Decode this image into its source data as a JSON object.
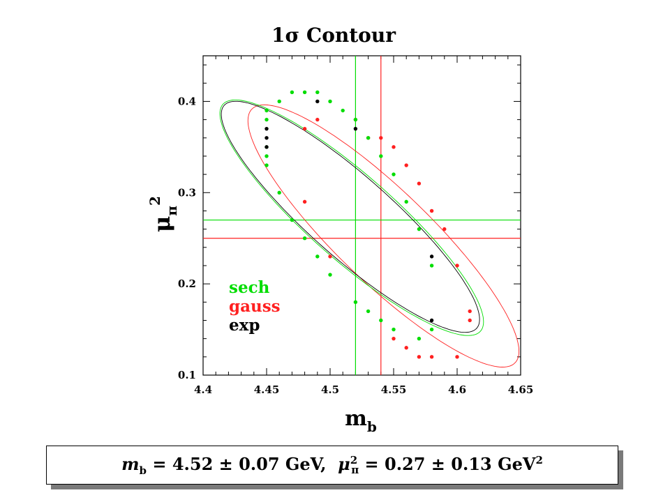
{
  "chart_data": {
    "type": "scatter",
    "title": "1σ Contour",
    "xlabel": "m",
    "xlabel_sub": "b",
    "ylabel": "μ",
    "ylabel_sub": "π",
    "ylabel_sup": "2",
    "xlim": [
      4.4,
      4.65
    ],
    "ylim": [
      0.1,
      0.45
    ],
    "xticks": [
      4.4,
      4.45,
      4.5,
      4.55,
      4.6,
      4.65
    ],
    "xtick_labels": [
      "4.4",
      "4.45",
      "4.5",
      "4.55",
      "4.6",
      "4.65"
    ],
    "yticks": [
      0.1,
      0.2,
      0.3,
      0.4
    ],
    "ytick_labels": [
      "0.1",
      "0.2",
      "0.3",
      "0.4"
    ],
    "legend_position": "bottom-left",
    "series": [
      {
        "name": "sech",
        "color": "#00dd00",
        "contour": {
          "cx": 4.517,
          "cy": 0.2725,
          "a": 0.161,
          "b": 0.039,
          "angle_deg": -52
        },
        "points": [
          [
            4.45,
            0.39
          ],
          [
            4.45,
            0.38
          ],
          [
            4.45,
            0.35
          ],
          [
            4.45,
            0.34
          ],
          [
            4.45,
            0.33
          ],
          [
            4.46,
            0.4
          ],
          [
            4.47,
            0.41
          ],
          [
            4.48,
            0.41
          ],
          [
            4.49,
            0.41
          ],
          [
            4.5,
            0.4
          ],
          [
            4.51,
            0.39
          ],
          [
            4.52,
            0.38
          ],
          [
            4.53,
            0.36
          ],
          [
            4.54,
            0.34
          ],
          [
            4.55,
            0.32
          ],
          [
            4.56,
            0.29
          ],
          [
            4.57,
            0.26
          ],
          [
            4.58,
            0.22
          ],
          [
            4.58,
            0.15
          ],
          [
            4.57,
            0.14
          ],
          [
            4.55,
            0.15
          ],
          [
            4.54,
            0.16
          ],
          [
            4.53,
            0.17
          ],
          [
            4.52,
            0.18
          ],
          [
            4.5,
            0.21
          ],
          [
            4.49,
            0.23
          ],
          [
            4.48,
            0.25
          ],
          [
            4.47,
            0.27
          ],
          [
            4.46,
            0.3
          ]
        ]
      },
      {
        "name": "gauss",
        "color": "#ff2020",
        "contour": {
          "cx": 4.542,
          "cy": 0.2525,
          "a": 0.174,
          "b": 0.042,
          "angle_deg": -54.5
        },
        "points": [
          [
            4.48,
            0.37
          ],
          [
            4.49,
            0.38
          ],
          [
            4.52,
            0.38
          ],
          [
            4.53,
            0.36
          ],
          [
            4.54,
            0.36
          ],
          [
            4.55,
            0.35
          ],
          [
            4.56,
            0.33
          ],
          [
            4.57,
            0.31
          ],
          [
            4.58,
            0.28
          ],
          [
            4.59,
            0.26
          ],
          [
            4.6,
            0.22
          ],
          [
            4.61,
            0.17
          ],
          [
            4.61,
            0.16
          ],
          [
            4.6,
            0.12
          ],
          [
            4.58,
            0.12
          ],
          [
            4.57,
            0.12
          ],
          [
            4.56,
            0.13
          ],
          [
            4.55,
            0.14
          ],
          [
            4.5,
            0.23
          ],
          [
            4.48,
            0.29
          ]
        ]
      },
      {
        "name": "exp",
        "color": "#000000",
        "contour": {
          "cx": 4.516,
          "cy": 0.2735,
          "a": 0.158,
          "b": 0.0375,
          "angle_deg": -52
        },
        "points": [
          [
            4.45,
            0.37
          ],
          [
            4.45,
            0.36
          ],
          [
            4.45,
            0.35
          ],
          [
            4.49,
            0.4
          ],
          [
            4.52,
            0.37
          ],
          [
            4.58,
            0.23
          ],
          [
            4.58,
            0.16
          ]
        ]
      }
    ],
    "reference_lines": [
      {
        "orientation": "vertical",
        "value": 4.52,
        "color": "#00dd00"
      },
      {
        "orientation": "vertical",
        "value": 4.54,
        "color": "#ff2020"
      },
      {
        "orientation": "horizontal",
        "value": 0.27,
        "color": "#00dd00"
      },
      {
        "orientation": "horizontal",
        "value": 0.25,
        "color": "#ff2020"
      }
    ]
  },
  "result": {
    "mb_symbol": "m",
    "mb_sub": "b",
    "mb_value": "= 4.52 ± 0.07 GeV,",
    "mu_symbol": "μ",
    "mu_sub": "π",
    "mu_sup": "2",
    "mu_value": "= 0.27 ± 0.13 GeV",
    "unit_sup": "2"
  }
}
